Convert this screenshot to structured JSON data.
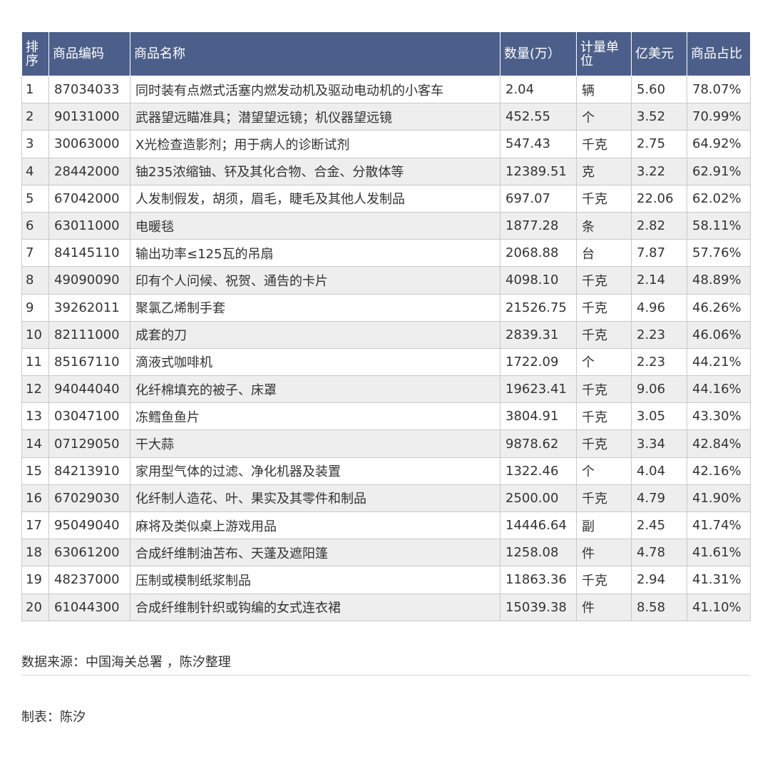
{
  "table": {
    "headers": [
      "排序",
      "商品编码",
      "商品名称",
      "数量(万）",
      "计量单位",
      "亿美元",
      "商品占比"
    ],
    "rows": [
      [
        "1",
        "87034033",
        "同时装有点燃式活塞内燃发动机及驱动电动机的小客车",
        "2.04",
        "辆",
        "5.60",
        "78.07%"
      ],
      [
        "2",
        "90131000",
        "武器望远瞄准具；潜望望远镜；机仪器望远镜",
        "452.55",
        "个",
        "3.52",
        "70.99%"
      ],
      [
        "3",
        "30063000",
        "X光检查造影剂；用于病人的诊断试剂",
        "547.43",
        "千克",
        "2.75",
        "64.92%"
      ],
      [
        "4",
        "28442000",
        "铀235浓缩铀、钚及其化合物、合金、分散体等",
        "12389.51",
        "克",
        "3.22",
        "62.91%"
      ],
      [
        "5",
        "67042000",
        "人发制假发，胡须，眉毛，睫毛及其他人发制品",
        "697.07",
        "千克",
        "22.06",
        "62.02%"
      ],
      [
        "6",
        "63011000",
        "电暖毯",
        "1877.28",
        "条",
        "2.82",
        "58.11%"
      ],
      [
        "7",
        "84145110",
        "输出功率≤125瓦的吊扇",
        "2068.88",
        "台",
        "7.87",
        "57.76%"
      ],
      [
        "8",
        "49090090",
        "印有个人问候、祝贺、通告的卡片",
        "4098.10",
        "千克",
        "2.14",
        "48.89%"
      ],
      [
        "9",
        "39262011",
        "聚氯乙烯制手套",
        "21526.75",
        "千克",
        "4.96",
        "46.26%"
      ],
      [
        "10",
        "82111000",
        "成套的刀",
        "2839.31",
        "千克",
        "2.23",
        "46.06%"
      ],
      [
        "11",
        "85167110",
        "滴液式咖啡机",
        "1722.09",
        "个",
        "2.23",
        "44.21%"
      ],
      [
        "12",
        "94044040",
        "化纤棉填充的被子、床罩",
        "19623.41",
        "千克",
        "9.06",
        "44.16%"
      ],
      [
        "13",
        "03047100",
        "冻鳕鱼鱼片",
        "3804.91",
        "千克",
        "3.05",
        "43.30%"
      ],
      [
        "14",
        "07129050",
        "干大蒜",
        "9878.62",
        "千克",
        "3.34",
        "42.84%"
      ],
      [
        "15",
        "84213910",
        "家用型气体的过滤、净化机器及装置",
        "1322.46",
        "个",
        "4.04",
        "42.16%"
      ],
      [
        "16",
        "67029030",
        "化纤制人造花、叶、果实及其零件和制品",
        "2500.00",
        "千克",
        "4.79",
        "41.90%"
      ],
      [
        "17",
        "95049040",
        "麻将及类似桌上游戏用品",
        "14446.64",
        "副",
        "2.45",
        "41.74%"
      ],
      [
        "18",
        "63061200",
        "合成纤维制油苫布、天蓬及遮阳篷",
        "1258.08",
        "件",
        "4.78",
        "41.61%"
      ],
      [
        "19",
        "48237000",
        "压制或模制纸浆制品",
        "11863.36",
        "千克",
        "2.94",
        "41.31%"
      ],
      [
        "20",
        "61044300",
        "合成纤维制针织或钩编的女式连衣裙",
        "15039.38",
        "件",
        "8.58",
        "41.10%"
      ]
    ]
  },
  "footer": {
    "source": "数据来源：中国海关总署 ，陈汐整理",
    "maker": "制表：陈汐"
  }
}
